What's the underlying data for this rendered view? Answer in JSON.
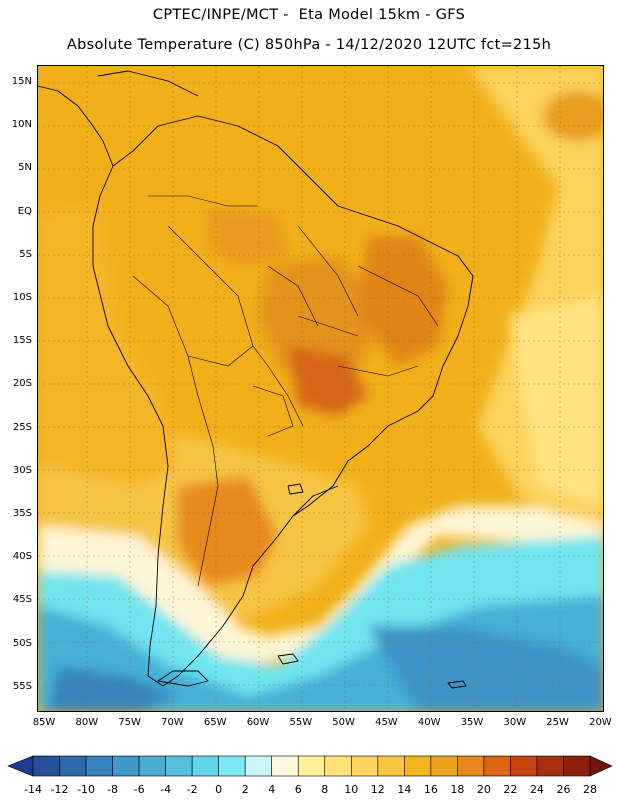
{
  "header": {
    "line1": "CPTEC/INPE/MCT -  Eta Model 15km - GFS",
    "line2": "Absolute Temperature (C) 850hPa - 14/12/2020 12UTC fct=215h"
  },
  "map": {
    "variable": "Absolute Temperature",
    "units": "C",
    "level": "850hPa",
    "region": "South America",
    "lat_ticks": [
      "15N",
      "10N",
      "5N",
      "EQ",
      "5S",
      "10S",
      "15S",
      "20S",
      "25S",
      "30S",
      "35S",
      "40S",
      "45S",
      "50S",
      "55S"
    ],
    "lon_ticks": [
      "85W",
      "80W",
      "75W",
      "70W",
      "65W",
      "60W",
      "55W",
      "50W",
      "45W",
      "40W",
      "35W",
      "30W",
      "25W",
      "20W"
    ]
  },
  "legend": {
    "labels": [
      "-14",
      "-12",
      "-10",
      "-8",
      "-6",
      "-4",
      "-2",
      "0",
      "2",
      "4",
      "6",
      "8",
      "10",
      "12",
      "14",
      "16",
      "18",
      "20",
      "22",
      "24",
      "26",
      "28"
    ],
    "colors": [
      "#1f3a93",
      "#27509c",
      "#2d6aac",
      "#3682bd",
      "#3e98c9",
      "#49acd4",
      "#55c0dc",
      "#62d6e8",
      "#7ae9f2",
      "#c9f4f8",
      "#fff8dc",
      "#fff19a",
      "#ffe27a",
      "#fcd560",
      "#f7c542",
      "#f4b51a",
      "#eca31c",
      "#e8861a",
      "#dd6414",
      "#c74410",
      "#a8300e",
      "#8c1f10",
      "#6f1813"
    ]
  }
}
